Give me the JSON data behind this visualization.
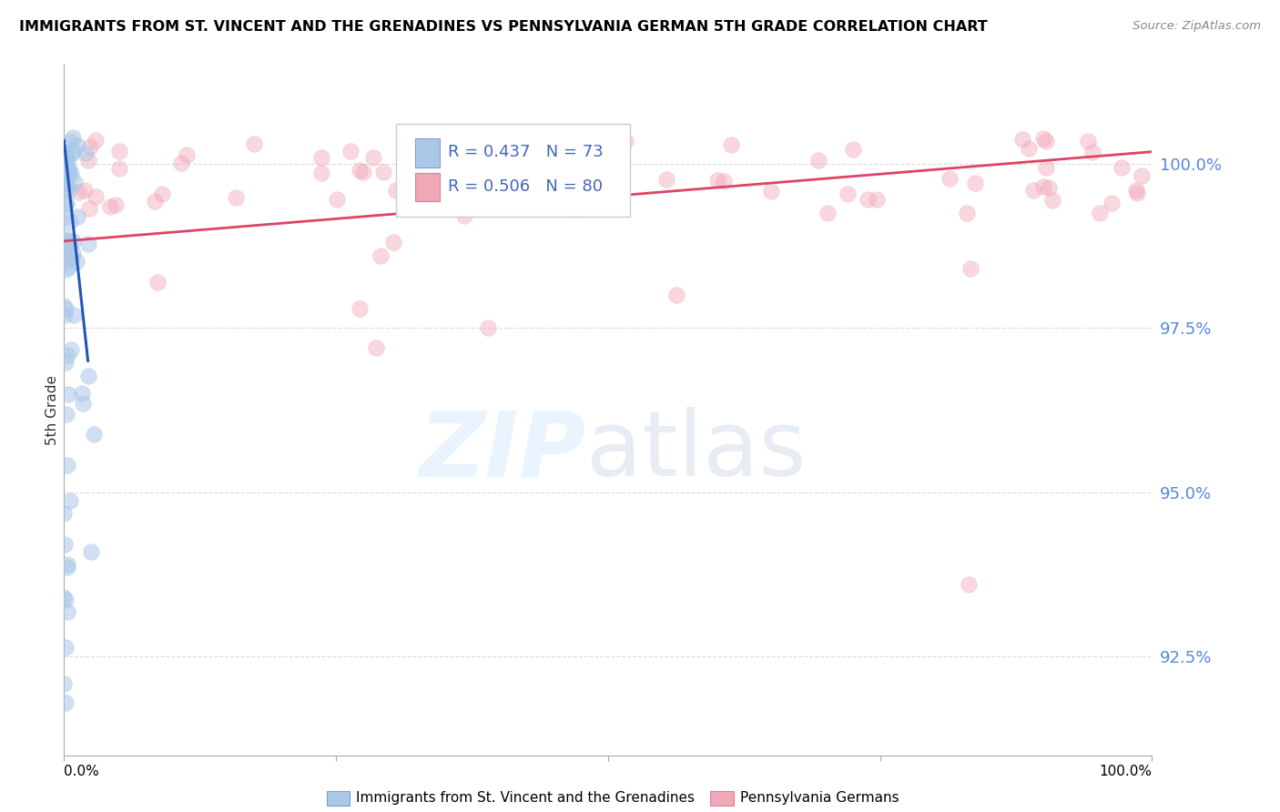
{
  "title": "IMMIGRANTS FROM ST. VINCENT AND THE GRENADINES VS PENNSYLVANIA GERMAN 5TH GRADE CORRELATION CHART",
  "source": "Source: ZipAtlas.com",
  "ylabel": "5th Grade",
  "ytick_values": [
    100.0,
    97.5,
    95.0,
    92.5
  ],
  "ymin": 91.0,
  "ymax": 101.5,
  "xmin": 0.0,
  "xmax": 100.0,
  "legend_entries": [
    {
      "label": "Immigrants from St. Vincent and the Grenadines",
      "R": 0.437,
      "N": 73,
      "color": "#aac8e8"
    },
    {
      "label": "Pennsylvania Germans",
      "R": 0.506,
      "N": 80,
      "color": "#f0a8b8"
    }
  ],
  "blue_color": "#aac8e8",
  "pink_color": "#f0a8b8",
  "trend_blue": "#2255bb",
  "trend_pink": "#dd4466",
  "blue_trend_x": [
    0.0,
    2.2
  ],
  "blue_trend_y": [
    100.35,
    97.0
  ],
  "pink_trend_x": [
    0.0,
    100.0
  ],
  "pink_trend_y": [
    98.82,
    100.18
  ],
  "watermark_zip": "ZIP",
  "watermark_atlas": "atlas"
}
